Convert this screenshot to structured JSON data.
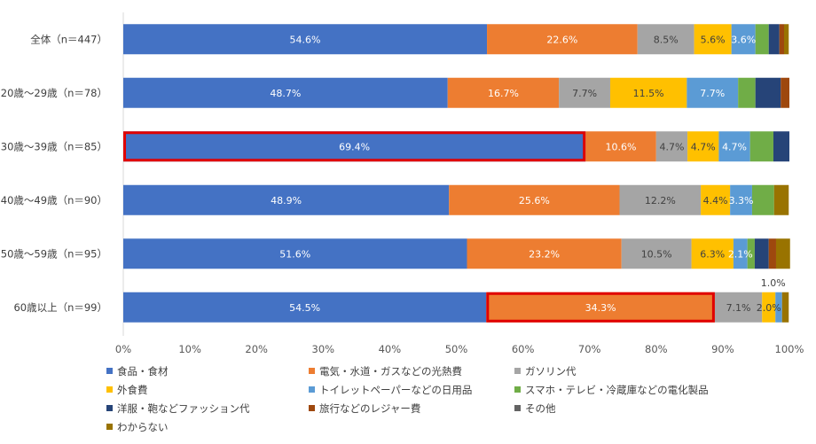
{
  "chart_data": {
    "type": "bar",
    "orientation": "horizontal",
    "stacked": true,
    "normalized": true,
    "categories": [
      "全体（n＝447）",
      "20歳～29歳（n＝78）",
      "30歳～39歳（n＝85）",
      "40歳～49歳（n＝90）",
      "50歳～59歳（n＝95）",
      "60歳以上（n＝99）"
    ],
    "series": [
      {
        "name": "食品・食材",
        "color": "#4472c4",
        "values": [
          54.6,
          48.7,
          69.4,
          48.9,
          51.6,
          54.5
        ]
      },
      {
        "name": "電気・水道・ガスなどの光熱費",
        "color": "#ed7d31",
        "values": [
          22.6,
          16.7,
          10.6,
          25.6,
          23.2,
          34.3
        ]
      },
      {
        "name": "ガソリン代",
        "color": "#a5a5a5",
        "values": [
          8.5,
          7.7,
          4.7,
          12.2,
          10.5,
          7.1
        ]
      },
      {
        "name": "外食費",
        "color": "#ffc000",
        "values": [
          5.6,
          11.5,
          4.7,
          4.4,
          6.3,
          2.0
        ]
      },
      {
        "name": "トイレットペーパーなどの日用品",
        "color": "#5b9bd5",
        "values": [
          3.6,
          7.7,
          4.7,
          3.3,
          2.1,
          1.0
        ]
      },
      {
        "name": "スマホ・テレビ・冷蔵庫などの電化製品",
        "color": "#70ad47",
        "values": [
          2.0,
          2.6,
          3.5,
          3.3,
          1.1,
          0.0
        ]
      },
      {
        "name": "洋服・鞄などファッション代",
        "color": "#264478",
        "values": [
          1.6,
          3.8,
          2.4,
          0.0,
          2.1,
          0.0
        ]
      },
      {
        "name": "旅行などのレジャー費",
        "color": "#9e480e",
        "values": [
          0.7,
          1.3,
          0.0,
          0.0,
          1.1,
          0.0
        ]
      },
      {
        "name": "その他",
        "color": "#636363",
        "values": [
          0.0,
          0.0,
          0.0,
          0.0,
          0.0,
          0.0
        ]
      },
      {
        "name": "わからない",
        "color": "#997300",
        "values": [
          0.7,
          0.0,
          0.0,
          2.2,
          2.1,
          1.0
        ]
      }
    ],
    "data_labels": [
      [
        "54.6%",
        "22.6%",
        "8.5%",
        "5.6%",
        "3.6%",
        "",
        "",
        "",
        "",
        ""
      ],
      [
        "48.7%",
        "16.7%",
        "7.7%",
        "11.5%",
        "7.7%",
        "",
        "",
        "",
        "",
        ""
      ],
      [
        "69.4%",
        "10.6%",
        "4.7%",
        "4.7%",
        "4.7%",
        "",
        "",
        "",
        "",
        ""
      ],
      [
        "48.9%",
        "25.6%",
        "12.2%",
        "4.4%",
        "3.3%",
        "",
        "",
        "",
        "",
        ""
      ],
      [
        "51.6%",
        "23.2%",
        "10.5%",
        "6.3%",
        "2.1%",
        "",
        "",
        "",
        "",
        ""
      ],
      [
        "54.5%",
        "34.3%",
        "7.1%",
        "2.0%",
        "1.0%",
        "",
        "",
        "",
        "",
        ""
      ]
    ],
    "xlim": [
      0,
      100
    ],
    "xticks": [
      "0%",
      "10%",
      "20%",
      "30%",
      "40%",
      "50%",
      "60%",
      "70%",
      "80%",
      "90%",
      "100%"
    ],
    "highlights": [
      {
        "category_index": 2,
        "series_index": 0,
        "color": "#e00000"
      },
      {
        "category_index": 5,
        "series_index": 1,
        "color": "#e00000"
      }
    ],
    "legend_position": "bottom"
  }
}
